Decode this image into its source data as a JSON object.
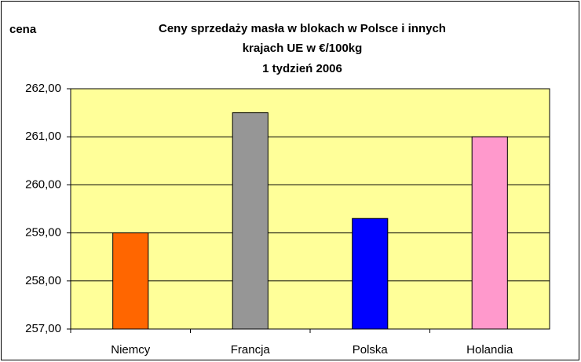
{
  "chart_data": {
    "type": "bar",
    "title": [
      "Ceny sprzedaży masła w blokach w Polsce i  innych",
      "krajach UE w €/100kg",
      "1 tydzień 2006"
    ],
    "y_label": "cena",
    "categories": [
      "Niemcy",
      "Francja",
      "Polska",
      "Holandia"
    ],
    "values": [
      259.0,
      261.5,
      259.3,
      261.0
    ],
    "colors": [
      "#ff6600",
      "#969696",
      "#0000ff",
      "#ff99cc"
    ],
    "ylim": [
      257,
      262
    ],
    "yticks": [
      {
        "value": 257,
        "label": "257,00"
      },
      {
        "value": 258,
        "label": "258,00"
      },
      {
        "value": 259,
        "label": "259,00"
      },
      {
        "value": 260,
        "label": "260,00"
      },
      {
        "value": 261,
        "label": "261,00"
      },
      {
        "value": 262,
        "label": "262,00"
      }
    ],
    "grid": true
  }
}
